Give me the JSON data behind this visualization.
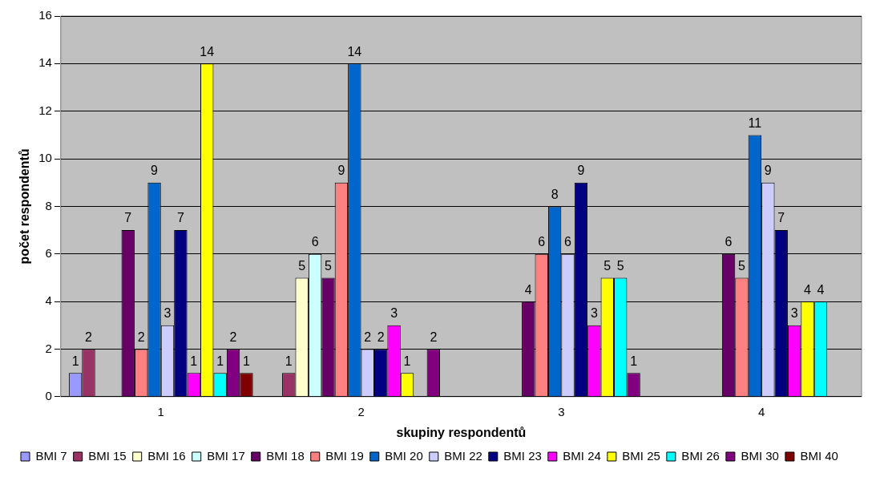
{
  "chart_data": {
    "type": "bar",
    "xlabel": "skupiny respondentů",
    "ylabel": "počet respondentů",
    "categories": [
      "1",
      "2",
      "3",
      "4"
    ],
    "ylim": [
      0,
      16
    ],
    "yticks": [
      0,
      2,
      4,
      6,
      8,
      10,
      12,
      14,
      16
    ],
    "grid": "y",
    "legend": "bottom",
    "data_labels": true,
    "series": [
      {
        "name": "BMI 7",
        "color": "#9999ff",
        "values": [
          1,
          null,
          null,
          null
        ]
      },
      {
        "name": "BMI 15",
        "color": "#993366",
        "values": [
          2,
          1,
          null,
          null
        ]
      },
      {
        "name": "BMI 16",
        "color": "#ffffcc",
        "values": [
          null,
          5,
          null,
          null
        ]
      },
      {
        "name": "BMI 17",
        "color": "#ccffff",
        "values": [
          null,
          6,
          null,
          null
        ]
      },
      {
        "name": "BMI 18",
        "color": "#660066",
        "values": [
          7,
          5,
          4,
          6
        ]
      },
      {
        "name": "BMI 19",
        "color": "#ff8080",
        "values": [
          2,
          9,
          6,
          5
        ]
      },
      {
        "name": "BMI 20",
        "color": "#0066cc",
        "values": [
          9,
          14,
          8,
          11
        ]
      },
      {
        "name": "BMI 22",
        "color": "#ccccff",
        "values": [
          3,
          2,
          6,
          9
        ]
      },
      {
        "name": "BMI 23",
        "color": "#000080",
        "values": [
          7,
          2,
          9,
          7
        ]
      },
      {
        "name": "BMI 24",
        "color": "#ff00ff",
        "values": [
          1,
          3,
          3,
          3
        ]
      },
      {
        "name": "BMI 25",
        "color": "#ffff00",
        "values": [
          14,
          1,
          5,
          4
        ]
      },
      {
        "name": "BMI 26",
        "color": "#00ffff",
        "values": [
          1,
          null,
          5,
          4
        ]
      },
      {
        "name": "BMI 30",
        "color": "#800080",
        "values": [
          2,
          2,
          1,
          null
        ]
      },
      {
        "name": "BMI 40",
        "color": "#800000",
        "values": [
          1,
          null,
          null,
          null
        ]
      }
    ]
  }
}
